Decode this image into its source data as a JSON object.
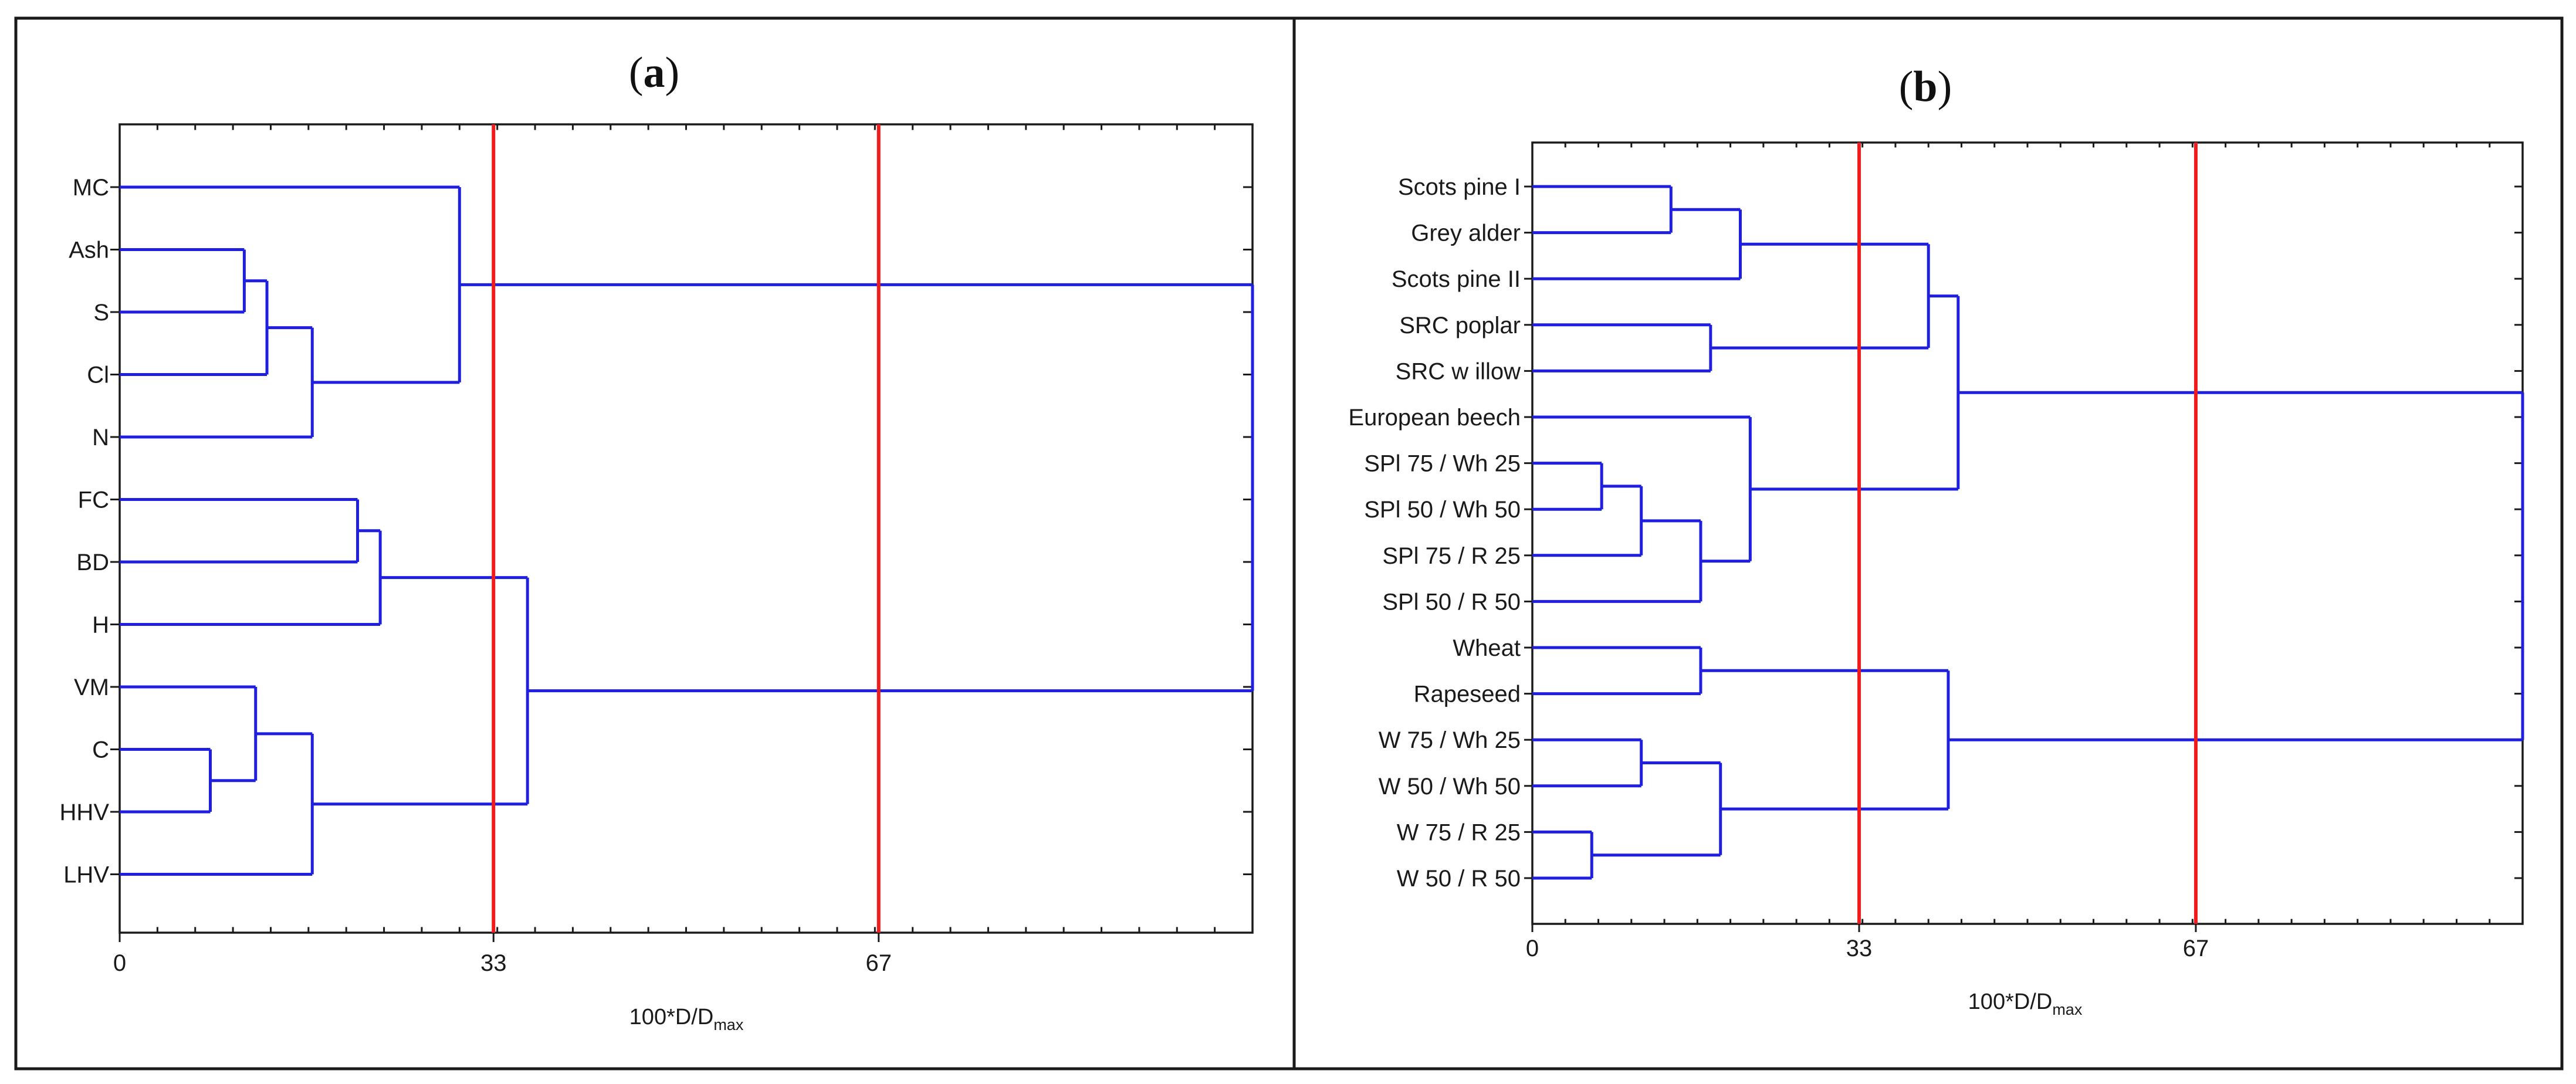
{
  "chart_data": [
    {
      "type": "dendrogram",
      "panel": "a",
      "title": "(a)",
      "title_letter": "a",
      "xlabel_main": "100*D/D",
      "xlabel_sub": "max",
      "xlim": [
        0,
        100
      ],
      "x_ticks": [
        0,
        33,
        67
      ],
      "x_tick_labels": [
        "0",
        "33",
        "67"
      ],
      "thresholds": [
        33,
        67
      ],
      "leaves": [
        "MC",
        "Ash",
        "S",
        "Cl",
        "N",
        "FC",
        "BD",
        "H",
        "VM",
        "C",
        "HHV",
        "LHV"
      ],
      "merges": [
        {
          "members": [
            "C",
            "HHV"
          ],
          "height": 8
        },
        {
          "members": [
            "Ash",
            "S"
          ],
          "height": 11
        },
        {
          "members": [
            "VM",
            "C",
            "HHV"
          ],
          "height": 12
        },
        {
          "members": [
            "Ash",
            "S",
            "Cl"
          ],
          "height": 13
        },
        {
          "members": [
            "VM",
            "C",
            "HHV",
            "LHV"
          ],
          "height": 17
        },
        {
          "members": [
            "Ash",
            "S",
            "Cl",
            "N"
          ],
          "height": 17
        },
        {
          "members": [
            "FC",
            "BD"
          ],
          "height": 21
        },
        {
          "members": [
            "FC",
            "BD",
            "H"
          ],
          "height": 23
        },
        {
          "members": [
            "MC",
            "Ash",
            "S",
            "Cl",
            "N"
          ],
          "height": 30
        },
        {
          "members": [
            "FC",
            "BD",
            "H",
            "VM",
            "C",
            "HHV",
            "LHV"
          ],
          "height": 36
        },
        {
          "members": [
            "MC",
            "Ash",
            "S",
            "Cl",
            "N",
            "FC",
            "BD",
            "H",
            "VM",
            "C",
            "HHV",
            "LHV"
          ],
          "height": 100
        }
      ]
    },
    {
      "type": "dendrogram",
      "panel": "b",
      "title": "(b)",
      "title_letter": "b",
      "xlabel_main": "100*D/D",
      "xlabel_sub": "max",
      "xlim": [
        0,
        100
      ],
      "x_ticks": [
        0,
        33,
        67
      ],
      "x_tick_labels": [
        "0",
        "33",
        "67"
      ],
      "thresholds": [
        33,
        67
      ],
      "leaves": [
        "Scots pine I",
        "Grey alder",
        "Scots pine II",
        "SRC poplar",
        "SRC w illow",
        "European beech",
        "SPl 75 / Wh 25",
        "SPl 50 / Wh 50",
        "SPl 75 / R 25",
        "SPl 50 / R 50",
        "Wheat",
        "Rapeseed",
        "W 75 / Wh 25",
        "W 50 / Wh 50",
        "W 75 / R 25",
        "W 50 / R 50"
      ],
      "merges": [
        {
          "members": [
            "W 75 / R 25",
            "W 50 / R 50"
          ],
          "height": 6
        },
        {
          "members": [
            "SPl 75 / Wh 25",
            "SPl 50 / Wh 50"
          ],
          "height": 7
        },
        {
          "members": [
            "SPl 75 / Wh 25",
            "SPl 50 / Wh 50",
            "SPl 75 / R 25"
          ],
          "height": 11
        },
        {
          "members": [
            "W 75 / Wh 25",
            "W 50 / Wh 50"
          ],
          "height": 11
        },
        {
          "members": [
            "Scots pine I",
            "Grey alder"
          ],
          "height": 14
        },
        {
          "members": [
            "SPl 75 / Wh 25",
            "SPl 50 / Wh 50",
            "SPl 75 / R 25",
            "SPl 50 / R 50"
          ],
          "height": 17
        },
        {
          "members": [
            "Wheat",
            "Rapeseed"
          ],
          "height": 17
        },
        {
          "members": [
            "SRC poplar",
            "SRC w illow"
          ],
          "height": 18
        },
        {
          "members": [
            "W 75 / Wh 25",
            "W 50 / Wh 50",
            "W 75 / R 25",
            "W 50 / R 50"
          ],
          "height": 19
        },
        {
          "members": [
            "Scots pine I",
            "Grey alder",
            "Scots pine II"
          ],
          "height": 21
        },
        {
          "members": [
            "European beech",
            "SPl 75 / Wh 25",
            "SPl 50 / Wh 50",
            "SPl 75 / R 25",
            "SPl 50 / R 50"
          ],
          "height": 22
        },
        {
          "members": [
            "Scots pine I",
            "Grey alder",
            "Scots pine II",
            "SRC poplar",
            "SRC w illow"
          ],
          "height": 40
        },
        {
          "members": [
            "Wheat",
            "Rapeseed",
            "W 75 / Wh 25",
            "W 50 / Wh 50",
            "W 75 / R 25",
            "W 50 / R 50"
          ],
          "height": 42
        },
        {
          "members": [
            "Scots pine I",
            "Grey alder",
            "Scots pine II",
            "SRC poplar",
            "SRC w illow",
            "European beech",
            "SPl 75 / Wh 25",
            "SPl 50 / Wh 50",
            "SPl 75 / R 25",
            "SPl 50 / R 50"
          ],
          "height": 43
        },
        {
          "members": [
            "Scots pine I",
            "Grey alder",
            "Scots pine II",
            "SRC poplar",
            "SRC w illow",
            "European beech",
            "SPl 75 / Wh 25",
            "SPl 50 / Wh 50",
            "SPl 75 / R 25",
            "SPl 50 / R 50",
            "Wheat",
            "Rapeseed",
            "W 75 / Wh 25",
            "W 50 / Wh 50",
            "W 75 / R 25",
            "W 50 / R 50"
          ],
          "height": 100
        }
      ]
    }
  ],
  "colors": {
    "branch": "#1f1fe0",
    "threshold": "#ee1c1c",
    "frame": "#1a1a1a"
  }
}
